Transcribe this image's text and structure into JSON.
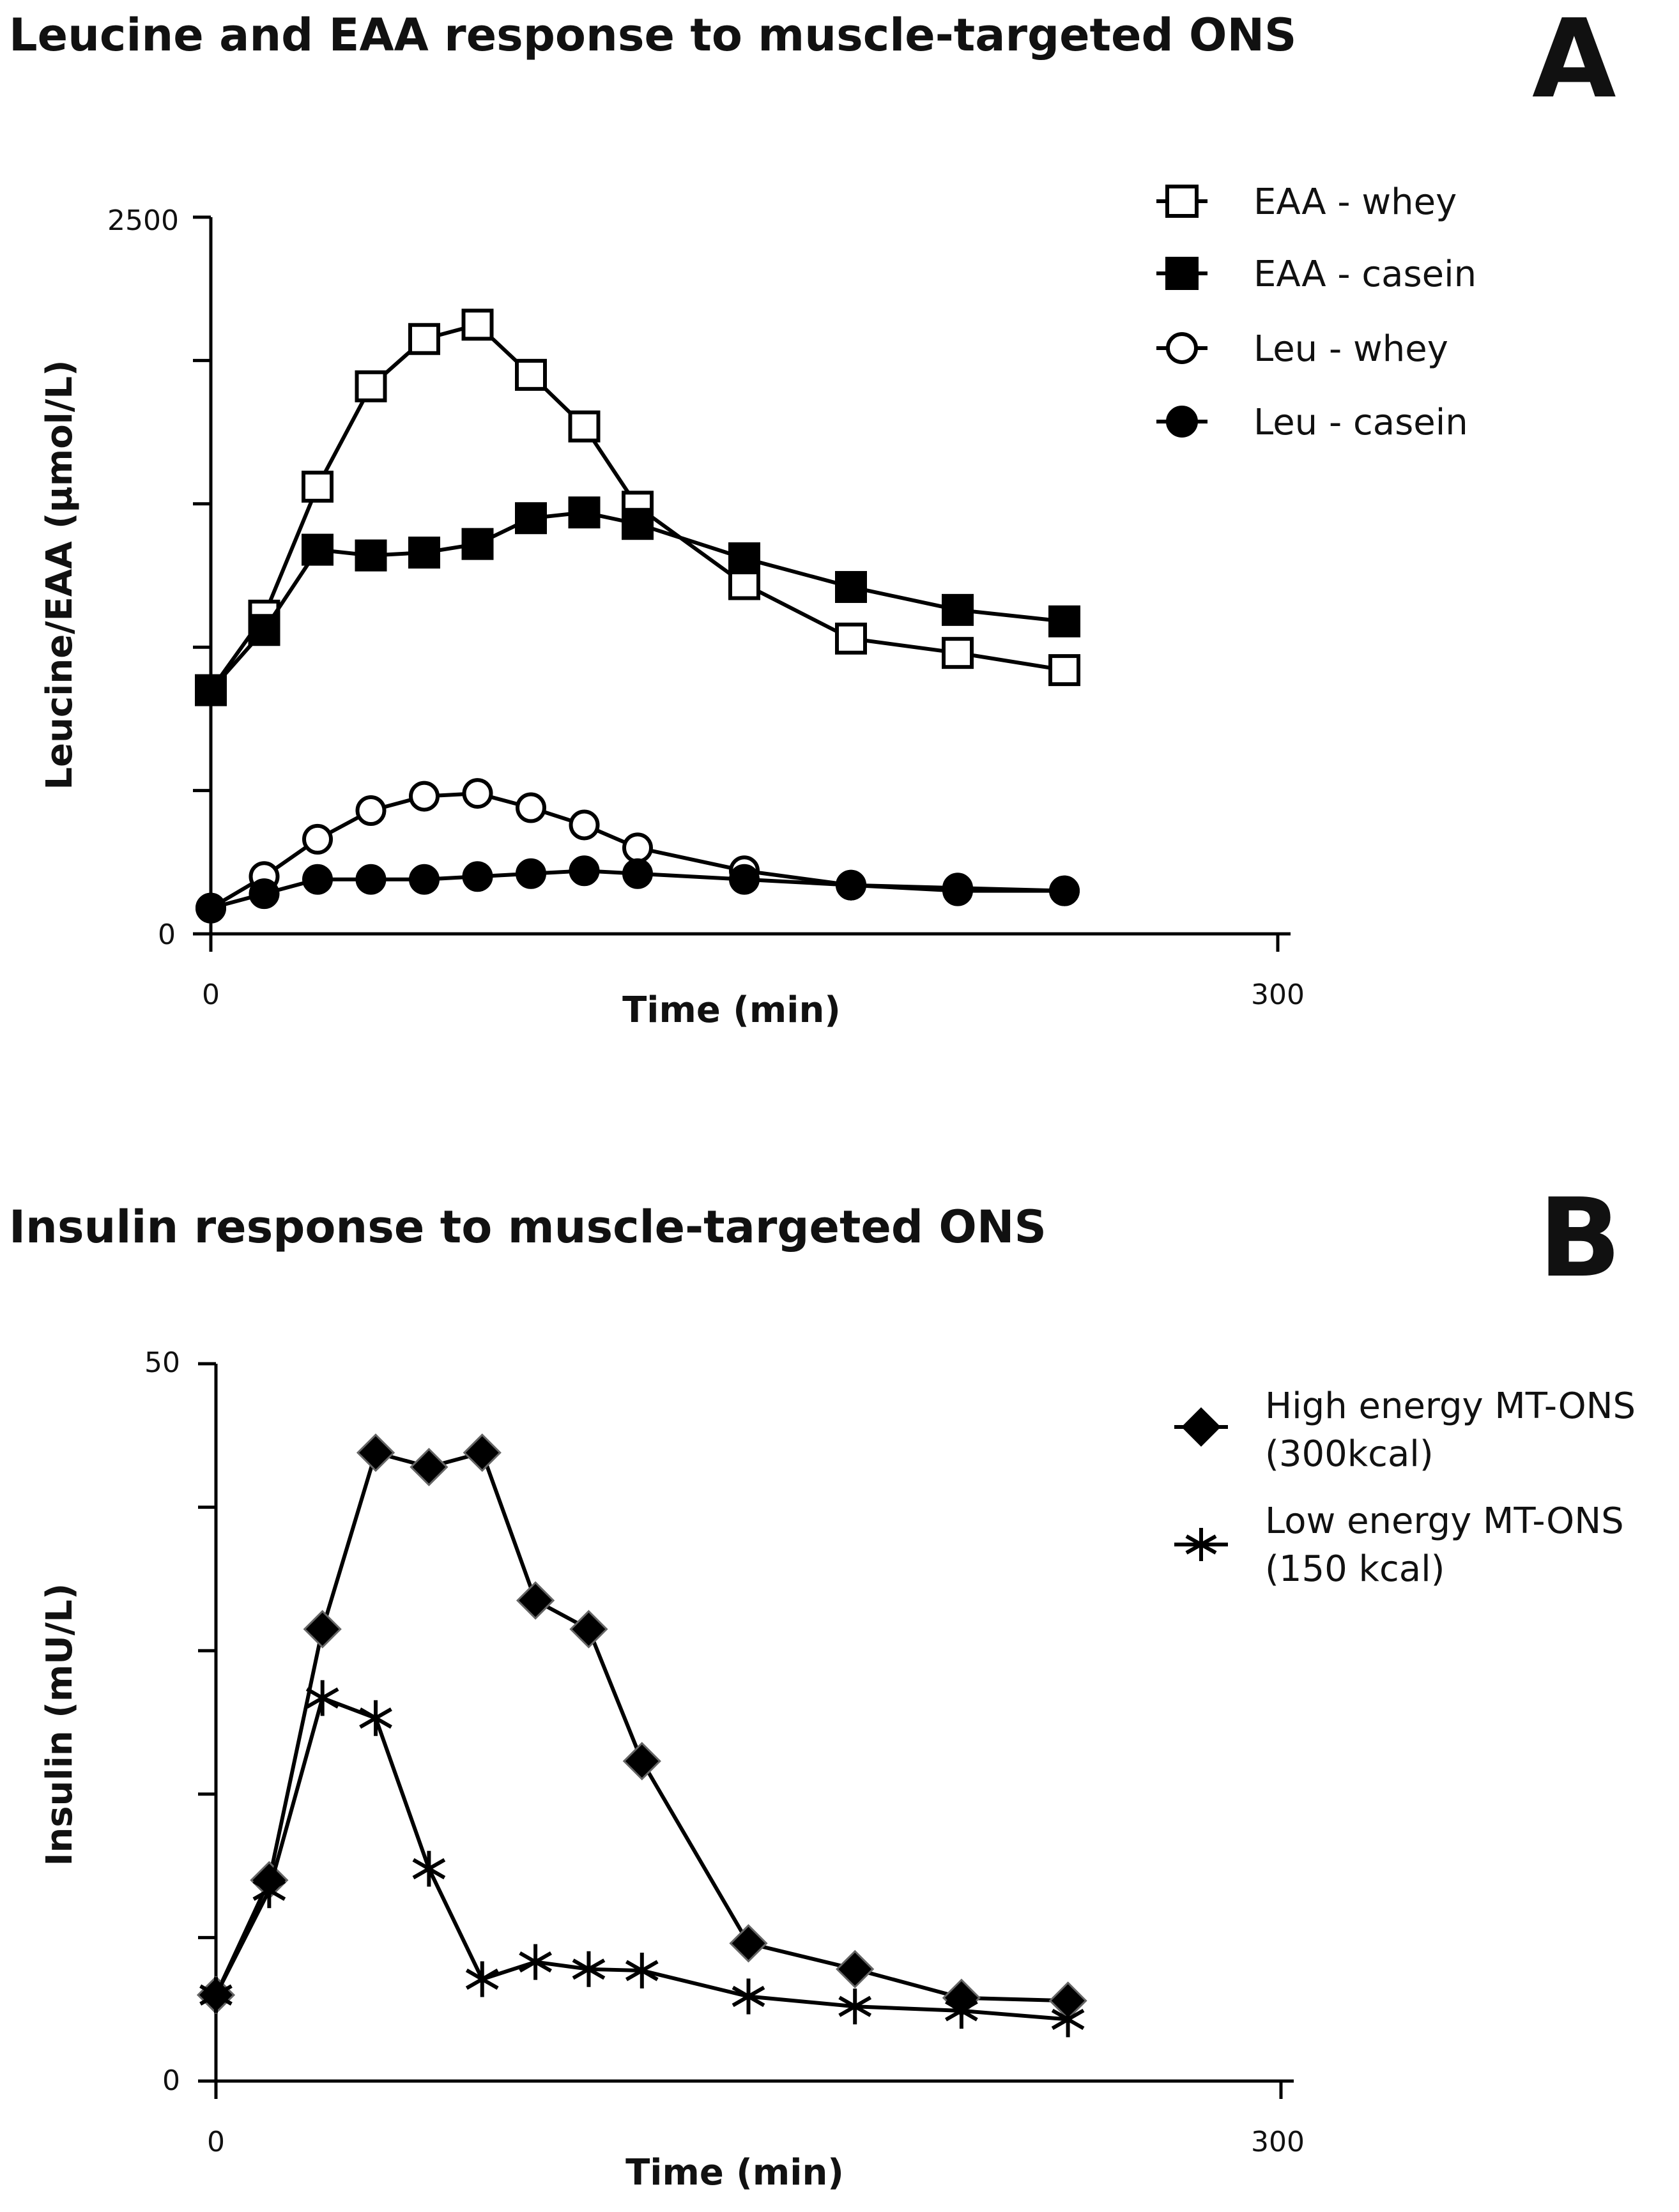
{
  "chart_data": [
    {
      "type": "line",
      "panel": "A",
      "title": "Leucine and EAA response to muscle-targeted ONS",
      "xlabel": "Time (min)",
      "ylabel": "Leucine/EAA (µmol/L)",
      "xlim": [
        0,
        300
      ],
      "ylim": [
        0,
        2500
      ],
      "x_tick_labels": [
        "0",
        "300"
      ],
      "y_tick_labels": [
        "0",
        "2500"
      ],
      "y_tick_values": [
        0,
        500,
        1000,
        1500,
        2000,
        2500
      ],
      "grid": false,
      "legend_position": "top-right",
      "series": [
        {
          "name": "EAA - whey",
          "marker": "square-open",
          "x": [
            0,
            15,
            30,
            45,
            60,
            75,
            90,
            105,
            120,
            150,
            180,
            210,
            240
          ],
          "y": [
            850,
            1110,
            1560,
            1910,
            2075,
            2125,
            1950,
            1770,
            1490,
            1220,
            1030,
            980,
            920
          ]
        },
        {
          "name": "EAA - casein",
          "marker": "square-filled",
          "x": [
            0,
            15,
            30,
            45,
            60,
            75,
            90,
            105,
            120,
            150,
            180,
            210,
            240
          ],
          "y": [
            850,
            1060,
            1340,
            1320,
            1330,
            1360,
            1450,
            1470,
            1430,
            1310,
            1210,
            1130,
            1090
          ]
        },
        {
          "name": "Leu - whey",
          "marker": "circle-open",
          "x": [
            0,
            15,
            30,
            45,
            60,
            75,
            90,
            105,
            120,
            150,
            180,
            210,
            240
          ],
          "y": [
            90,
            200,
            330,
            430,
            480,
            490,
            440,
            380,
            300,
            220,
            170,
            160,
            150
          ]
        },
        {
          "name": "Leu - casein",
          "marker": "circle-filled",
          "x": [
            0,
            15,
            30,
            45,
            60,
            75,
            90,
            105,
            120,
            150,
            180,
            210,
            240
          ],
          "y": [
            90,
            140,
            190,
            190,
            190,
            200,
            210,
            220,
            210,
            190,
            170,
            150,
            150
          ]
        }
      ]
    },
    {
      "type": "line",
      "panel": "B",
      "title": "Insulin response to muscle-targeted ONS",
      "xlabel": "Time (min)",
      "ylabel": "Insulin (mU/L)",
      "xlim": [
        0,
        300
      ],
      "ylim": [
        0,
        50
      ],
      "x_tick_labels": [
        "0",
        "300"
      ],
      "y_tick_labels": [
        "0",
        "50"
      ],
      "y_tick_values": [
        0,
        10,
        20,
        30,
        40,
        50
      ],
      "grid": false,
      "legend_position": "top-right",
      "series": [
        {
          "name": "High energy MT-ONS (300kcal)",
          "marker": "diamond-filled",
          "x": [
            0,
            15,
            30,
            45,
            60,
            75,
            90,
            105,
            120,
            150,
            180,
            210,
            240
          ],
          "y": [
            6,
            14,
            31.5,
            43.8,
            42.8,
            43.8,
            33.5,
            31.5,
            22.3,
            9.6,
            7.8,
            5.8,
            5.6
          ]
        },
        {
          "name": "Low energy MT-ONS (150 kcal)",
          "marker": "asterisk",
          "x": [
            0,
            15,
            30,
            45,
            60,
            75,
            90,
            105,
            120,
            150,
            180,
            210,
            240
          ],
          "y": [
            6,
            13.3,
            26.7,
            25.3,
            14.8,
            7.1,
            8.3,
            7.8,
            7.7,
            5.9,
            5.2,
            4.9,
            4.3
          ]
        }
      ]
    }
  ],
  "legend_a": [
    {
      "label": "EAA - whey"
    },
    {
      "label": "EAA - casein"
    },
    {
      "label": "Leu - whey"
    },
    {
      "label": "Leu - casein"
    }
  ],
  "legend_b": [
    {
      "label_line1": "High energy MT-ONS",
      "label_line2": "(300kcal)"
    },
    {
      "label_line1": "Low energy MT-ONS",
      "label_line2": "(150 kcal)"
    }
  ],
  "colors": {
    "ink": "#000000",
    "background": "#ffffff"
  }
}
